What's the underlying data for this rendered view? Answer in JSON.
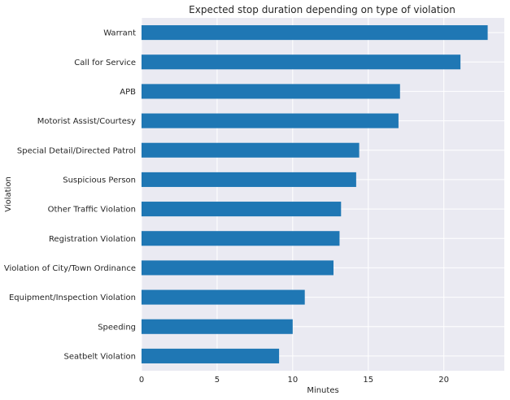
{
  "chart_data": {
    "type": "bar",
    "orientation": "horizontal",
    "title": "Expected stop duration depending on type of violation",
    "xlabel": "Minutes",
    "ylabel": "Violation",
    "categories": [
      "Warrant",
      "Call for Service",
      "APB",
      "Motorist Assist/Courtesy",
      "Special Detail/Directed Patrol",
      "Suspicious Person",
      "Other Traffic Violation",
      "Registration Violation",
      "Violation of City/Town Ordinance",
      "Equipment/Inspection Violation",
      "Speeding",
      "Seatbelt Violation"
    ],
    "values": [
      22.9,
      21.1,
      17.1,
      17.0,
      14.4,
      14.2,
      13.2,
      13.1,
      12.7,
      10.8,
      10.0,
      9.1
    ],
    "xlim": [
      0,
      24
    ],
    "xticks": [
      0,
      5,
      10,
      15,
      20
    ],
    "grid": true,
    "legend": "none",
    "colors": {
      "bar": "#1f77b4",
      "plot_background": "#eaeaf2",
      "grid": "#ffffff",
      "text": "#262626"
    }
  }
}
